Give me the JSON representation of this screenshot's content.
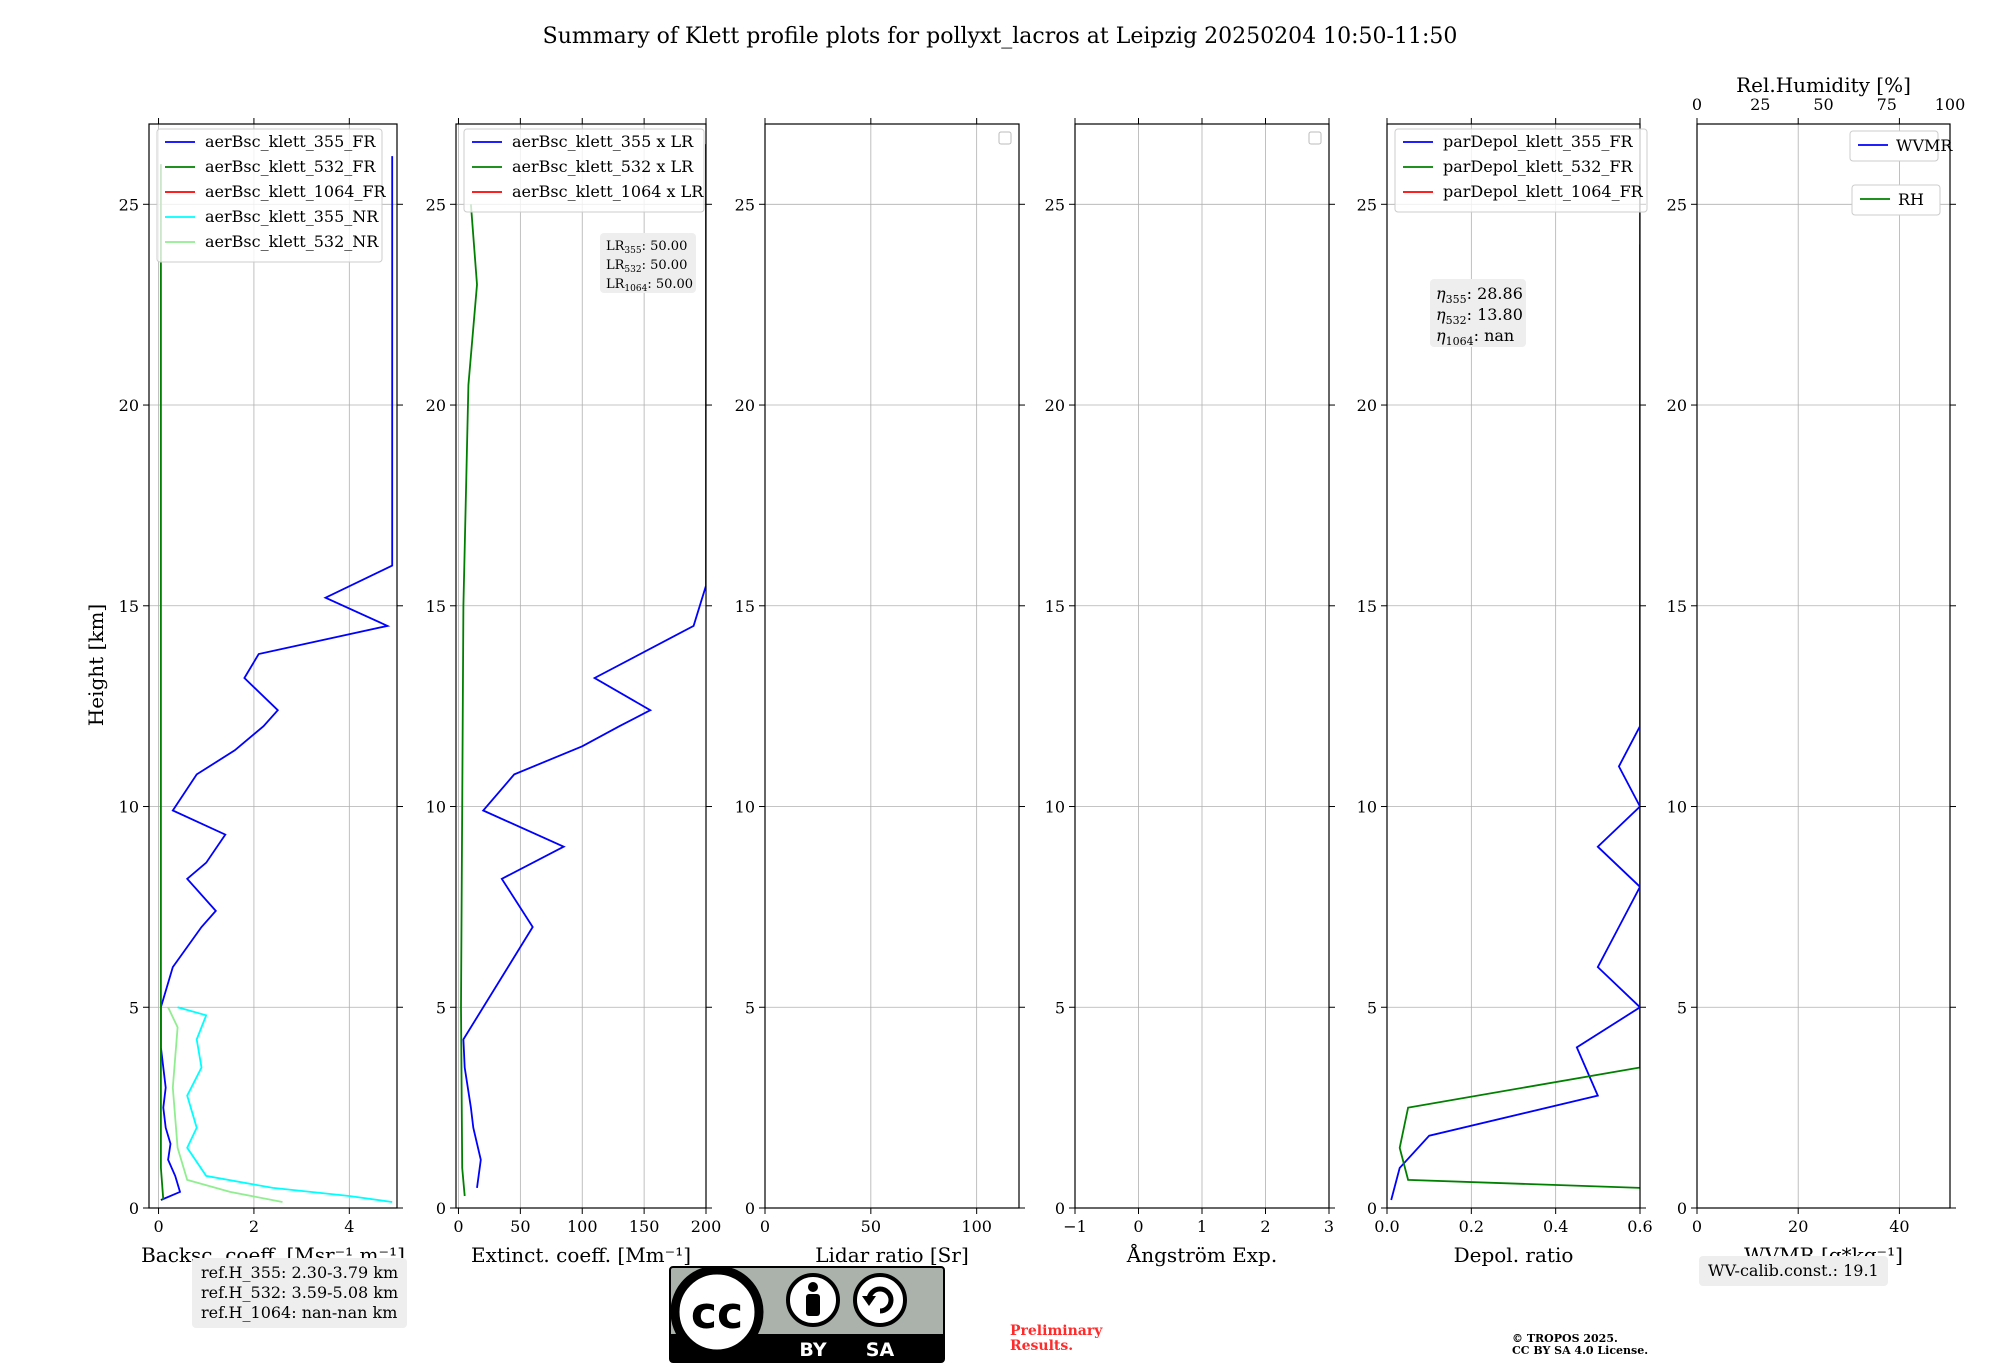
{
  "title": "Summary of Klett profile plots for pollyxt_lacros at Leipzig 20250204 10:50-11:50",
  "ylabel": "Height [km]",
  "yticks": [
    "0",
    "5",
    "10",
    "15",
    "20",
    "25"
  ],
  "panels": [
    {
      "id": "bsc",
      "xlabel": "Backsc. coeff. [Msr⁻¹ m⁻¹]",
      "xticks": [
        "0",
        "2",
        "4"
      ],
      "xlim": [
        -0.2,
        5
      ],
      "legend": [
        "aerBsc_klett_355_FR",
        "aerBsc_klett_532_FR",
        "aerBsc_klett_1064_FR",
        "aerBsc_klett_355_NR",
        "aerBsc_klett_532_NR"
      ]
    },
    {
      "id": "ext",
      "xlabel": "Extinct. coeff. [Mm⁻¹]",
      "xticks": [
        "0",
        "50",
        "100",
        "150",
        "200"
      ],
      "xlim": [
        -2,
        200
      ],
      "legend": [
        "aerBsc_klett_355 x LR",
        "aerBsc_klett_532 x LR",
        "aerBsc_klett_1064 x LR"
      ],
      "lr_box": [
        "LR355: 50.00",
        "LR532: 50.00",
        "LR1064: 50.00"
      ]
    },
    {
      "id": "lr",
      "xlabel": "Lidar ratio [Sr]",
      "xticks": [
        "0",
        "50",
        "100"
      ],
      "xlim": [
        0,
        120
      ]
    },
    {
      "id": "ang",
      "xlabel": "Ångström Exp.",
      "xticks": [
        "−1",
        "0",
        "1",
        "2",
        "3"
      ],
      "xlim": [
        -1,
        3
      ]
    },
    {
      "id": "dep",
      "xlabel": "Depol. ratio",
      "xticks": [
        "0.0",
        "0.2",
        "0.4",
        "0.6"
      ],
      "xlim": [
        0,
        0.6
      ],
      "legend": [
        "parDepol_klett_355_FR",
        "parDepol_klett_532_FR",
        "parDepol_klett_1064_FR"
      ],
      "eta_box": [
        "η355: 28.86",
        "η532: 13.80",
        "η1064: nan"
      ]
    },
    {
      "id": "wv",
      "xlabel": "WVMR [g*kg⁻¹]",
      "xticks": [
        "0",
        "20",
        "40"
      ],
      "xlim": [
        0,
        50
      ],
      "top_label": "Rel.Humidity [%]",
      "top_ticks": [
        "0",
        "25",
        "50",
        "75",
        "100"
      ],
      "legend": [
        "WVMR",
        "RH"
      ]
    }
  ],
  "ref_box": [
    "ref.H_355: 2.30-3.79 km",
    "ref.H_532: 3.59-5.08 km",
    "ref.H_1064: nan-nan km"
  ],
  "wv_calib": "WV-calib.const.: 19.1",
  "preliminary": [
    "Preliminary",
    "Results."
  ],
  "copyright": [
    "© TROPOS 2025.",
    "CC BY SA 4.0 License."
  ],
  "cc_logo": {
    "cc": "cc",
    "by": "BY",
    "sa": "SA"
  },
  "colors": {
    "c355": "#0000ff",
    "c532": "#008000",
    "c1064": "#ff0000",
    "c355nr": "#00ffff",
    "c532nr": "#90ee90"
  },
  "chart_data": {
    "type": "line",
    "ylim": [
      0,
      27
    ],
    "grid": true,
    "series": [
      {
        "name": "aerBsc_klett_355_FR",
        "panel": "bsc",
        "color": "#0000ff",
        "points": [
          [
            0.05,
            0.2
          ],
          [
            0.45,
            0.4
          ],
          [
            0.35,
            0.8
          ],
          [
            0.2,
            1.2
          ],
          [
            0.25,
            1.6
          ],
          [
            0.15,
            2.0
          ],
          [
            0.1,
            2.5
          ],
          [
            0.15,
            3.0
          ],
          [
            0.1,
            3.5
          ],
          [
            0.05,
            4.0
          ],
          [
            0.05,
            5.0
          ],
          [
            0.3,
            6.0
          ],
          [
            0.9,
            7.0
          ],
          [
            1.2,
            7.4
          ],
          [
            0.6,
            8.2
          ],
          [
            1.0,
            8.6
          ],
          [
            1.4,
            9.3
          ],
          [
            0.3,
            9.9
          ],
          [
            0.8,
            10.8
          ],
          [
            1.6,
            11.4
          ],
          [
            2.2,
            12.0
          ],
          [
            2.5,
            12.4
          ],
          [
            1.8,
            13.2
          ],
          [
            2.1,
            13.8
          ],
          [
            4.8,
            14.5
          ],
          [
            3.5,
            15.2
          ],
          [
            4.9,
            16.0
          ],
          [
            4.9,
            17.0
          ],
          [
            4.9,
            18.3
          ],
          [
            4.9,
            19.5
          ],
          [
            4.9,
            20.4
          ],
          [
            4.9,
            21.2
          ],
          [
            4.9,
            21.9
          ],
          [
            4.9,
            23.0
          ],
          [
            4.9,
            24.5
          ],
          [
            4.9,
            26.2
          ]
        ]
      },
      {
        "name": "aerBsc_klett_532_FR",
        "panel": "bsc",
        "color": "#008000",
        "points": [
          [
            0.1,
            0.2
          ],
          [
            0.05,
            1.0
          ],
          [
            0.05,
            5.0
          ],
          [
            0.05,
            10.0
          ],
          [
            0.05,
            15.0
          ],
          [
            0.05,
            20.0
          ],
          [
            0.05,
            26.0
          ]
        ]
      },
      {
        "name": "aerBsc_klett_355_NR",
        "panel": "bsc",
        "color": "#00ffff",
        "points": [
          [
            4.9,
            0.15
          ],
          [
            4.0,
            0.3
          ],
          [
            2.4,
            0.5
          ],
          [
            1.0,
            0.8
          ],
          [
            0.6,
            1.5
          ],
          [
            0.8,
            2.0
          ],
          [
            0.6,
            2.8
          ],
          [
            0.9,
            3.5
          ],
          [
            0.8,
            4.2
          ],
          [
            1.0,
            4.8
          ],
          [
            0.4,
            5.0
          ]
        ]
      },
      {
        "name": "aerBsc_klett_532_NR",
        "panel": "bsc",
        "color": "#90ee90",
        "points": [
          [
            2.6,
            0.15
          ],
          [
            1.5,
            0.4
          ],
          [
            0.6,
            0.7
          ],
          [
            0.4,
            1.5
          ],
          [
            0.3,
            3.0
          ],
          [
            0.4,
            4.5
          ],
          [
            0.2,
            5.0
          ]
        ]
      },
      {
        "name": "aerBsc_klett_355 x LR",
        "panel": "ext",
        "color": "#0000ff",
        "points": [
          [
            15,
            0.5
          ],
          [
            18,
            1.2
          ],
          [
            12,
            2.0
          ],
          [
            10,
            2.5
          ],
          [
            5,
            3.5
          ],
          [
            4,
            4.2
          ],
          [
            40,
            6.0
          ],
          [
            60,
            7.0
          ],
          [
            35,
            8.2
          ],
          [
            85,
            9.0
          ],
          [
            20,
            9.9
          ],
          [
            45,
            10.8
          ],
          [
            100,
            11.5
          ],
          [
            130,
            12.0
          ],
          [
            155,
            12.4
          ],
          [
            110,
            13.2
          ],
          [
            190,
            14.5
          ],
          [
            200,
            15.5
          ],
          [
            200,
            17.0
          ],
          [
            200,
            18.5
          ],
          [
            200,
            20.3
          ],
          [
            200,
            22.0
          ],
          [
            200,
            24.5
          ],
          [
            200,
            26.5
          ]
        ]
      },
      {
        "name": "aerBsc_klett_532 x LR",
        "panel": "ext",
        "color": "#008000",
        "points": [
          [
            5,
            0.3
          ],
          [
            3,
            1.0
          ],
          [
            2,
            5.0
          ],
          [
            3,
            10.0
          ],
          [
            4,
            15.0
          ],
          [
            8,
            20.5
          ],
          [
            15,
            23.0
          ],
          [
            10,
            25.0
          ]
        ]
      },
      {
        "name": "parDepol_klett_355_FR",
        "panel": "dep",
        "color": "#0000ff",
        "points": [
          [
            0.01,
            0.2
          ],
          [
            0.03,
            1.0
          ],
          [
            0.1,
            1.8
          ],
          [
            0.5,
            2.8
          ],
          [
            0.45,
            4.0
          ],
          [
            0.6,
            5.0
          ],
          [
            0.5,
            6.0
          ],
          [
            0.55,
            7.0
          ],
          [
            0.6,
            8.0
          ],
          [
            0.5,
            9.0
          ],
          [
            0.6,
            10.0
          ],
          [
            0.55,
            11.0
          ],
          [
            0.6,
            12.0
          ],
          [
            0.6,
            14.0
          ],
          [
            0.6,
            16.0
          ],
          [
            0.6,
            18.0
          ],
          [
            0.6,
            20.0
          ],
          [
            0.6,
            22.0
          ],
          [
            0.6,
            24.0
          ]
        ]
      },
      {
        "name": "parDepol_klett_532_FR",
        "panel": "dep",
        "color": "#008000",
        "points": [
          [
            0.6,
            0.5
          ],
          [
            0.05,
            0.7
          ],
          [
            0.03,
            1.5
          ],
          [
            0.05,
            2.5
          ],
          [
            0.6,
            3.5
          ],
          [
            0.6,
            5.5
          ],
          [
            0.6,
            8.0
          ],
          [
            0.6,
            10.5
          ],
          [
            0.6,
            13.0
          ],
          [
            0.6,
            15.0
          ],
          [
            0.6,
            18.0
          ],
          [
            0.6,
            21.0
          ],
          [
            0.6,
            24.0
          ],
          [
            0.6,
            26.0
          ]
        ]
      }
    ]
  }
}
